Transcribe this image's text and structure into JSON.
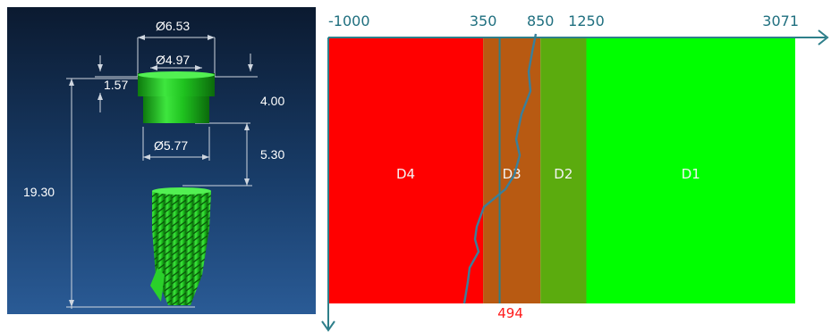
{
  "implant_drawing": {
    "dimensions": {
      "top_outer_diameter": "Ø6.53",
      "top_inner_diameter": "Ø4.97",
      "collar_height": "1.57",
      "cap_height": "4.00",
      "lower_diameter": "Ø5.77",
      "gap_height": "5.30",
      "total_length": "19.30"
    }
  },
  "chart_data": {
    "type": "band",
    "x_ticks": [
      -1000,
      350,
      850,
      1250,
      3071
    ],
    "x_domain": [
      -1000,
      3071
    ],
    "zones": [
      {
        "label": "D4",
        "from": -1000,
        "to": 350,
        "color": "#ff0000"
      },
      {
        "label": "D3",
        "from": 350,
        "to": 850,
        "color": "#b85a12"
      },
      {
        "label": "D2",
        "from": 850,
        "to": 1250,
        "color": "#5bab0e"
      },
      {
        "label": "D1",
        "from": 1250,
        "to": 3071,
        "color": "#00ff00"
      }
    ],
    "marker": {
      "value": 494,
      "label": "494",
      "color": "#ff1a1a"
    },
    "axis_color": "#2e7f8a",
    "tick_color": "#1f6f7f",
    "profile_color": "#3a7f9a"
  }
}
